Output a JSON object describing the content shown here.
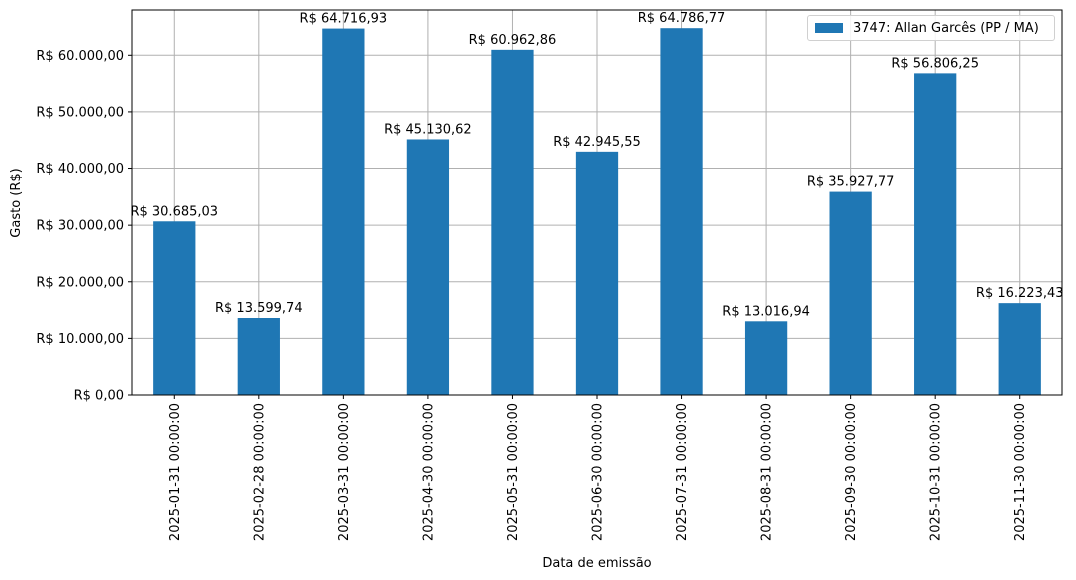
{
  "chart_data": {
    "type": "bar",
    "title": "",
    "xlabel": "Data de emissão",
    "ylabel": "Gasto (R$)",
    "ylim": [
      0,
      68000
    ],
    "grid": true,
    "legend_position": "upper right",
    "bar_color": "#1f77b4",
    "categories": [
      "2025-01-31 00:00:00",
      "2025-02-28 00:00:00",
      "2025-03-31 00:00:00",
      "2025-04-30 00:00:00",
      "2025-05-31 00:00:00",
      "2025-06-30 00:00:00",
      "2025-07-31 00:00:00",
      "2025-08-31 00:00:00",
      "2025-09-30 00:00:00",
      "2025-10-31 00:00:00",
      "2025-11-30 00:00:00"
    ],
    "series": [
      {
        "name": "3747: Allan Garcês (PP / MA)",
        "values": [
          30685.03,
          13599.74,
          64716.93,
          45130.62,
          60962.86,
          42945.55,
          64786.77,
          13016.94,
          35927.77,
          56806.25,
          16223.43
        ],
        "labels": [
          "R$ 30.685,03",
          "R$ 13.599,74",
          "R$ 64.716,93",
          "R$ 45.130,62",
          "R$ 60.962,86",
          "R$ 42.945,55",
          "R$ 64.786,77",
          "R$ 13.016,94",
          "R$ 35.927,77",
          "R$ 56.806,25",
          "R$ 16.223,43"
        ]
      }
    ],
    "y_ticks": [
      0,
      10000,
      20000,
      30000,
      40000,
      50000,
      60000
    ],
    "y_tick_labels": [
      "R$ 0,00",
      "R$ 10.000,00",
      "R$ 20.000,00",
      "R$ 30.000,00",
      "R$ 40.000,00",
      "R$ 50.000,00",
      "R$ 60.000,00"
    ]
  },
  "legend": {
    "label": "3747: Allan Garcês (PP / MA)"
  }
}
